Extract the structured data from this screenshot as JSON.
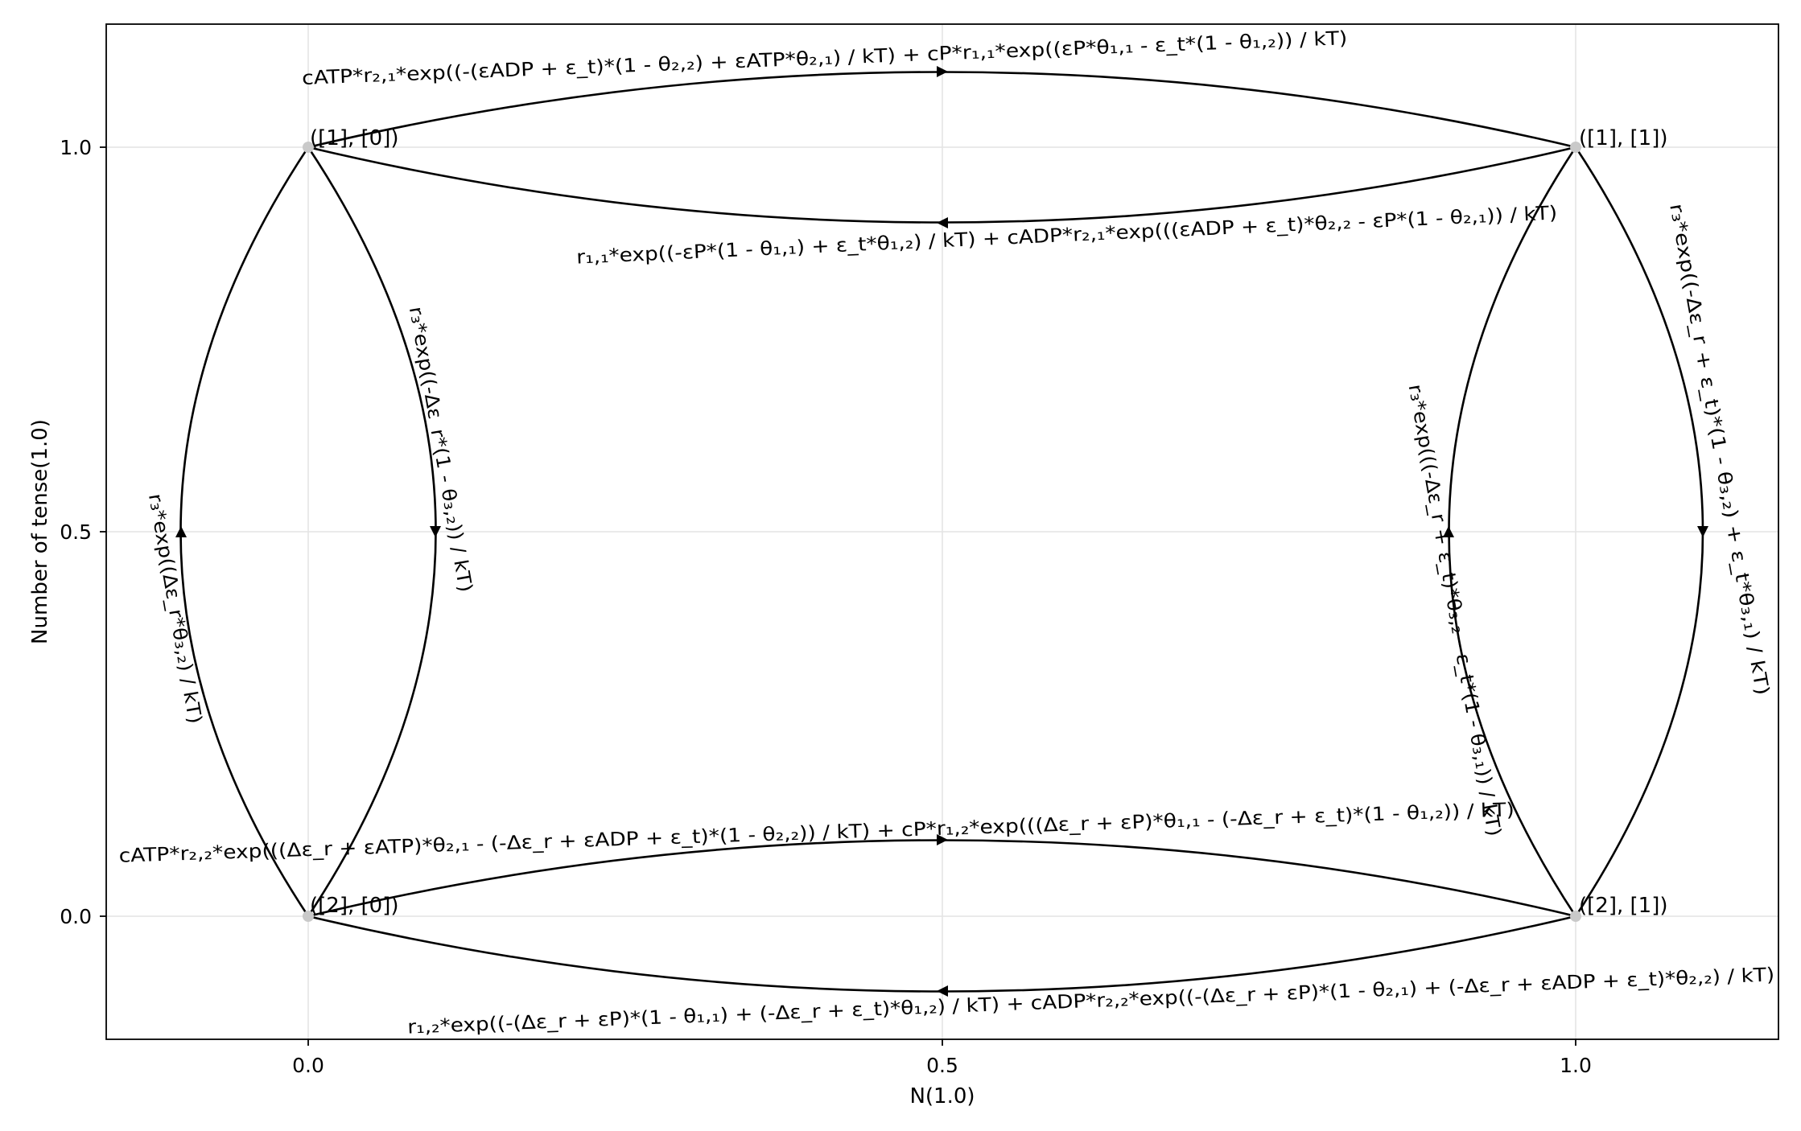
{
  "axes": {
    "xlabel": "N(1.0)",
    "ylabel": "Number of tense(1.0)",
    "xlim": [
      -0.16,
      1.16
    ],
    "ylim": [
      -0.16,
      1.16
    ],
    "xticks": [
      {
        "value": 0.0,
        "label": "0.0"
      },
      {
        "value": 0.5,
        "label": "0.5"
      },
      {
        "value": 1.0,
        "label": "1.0"
      }
    ],
    "yticks": [
      {
        "value": 0.0,
        "label": "0.0"
      },
      {
        "value": 0.5,
        "label": "0.5"
      },
      {
        "value": 1.0,
        "label": "1.0"
      }
    ],
    "grid": true
  },
  "nodes": [
    {
      "id": "n10",
      "label": "([1], [0])",
      "x": 0.0,
      "y": 1.0
    },
    {
      "id": "n11",
      "label": "([1], [1])",
      "x": 1.0,
      "y": 1.0
    },
    {
      "id": "n20",
      "label": "([2], [0])",
      "x": 0.0,
      "y": 0.0
    },
    {
      "id": "n21",
      "label": "([2], [1])",
      "x": 1.0,
      "y": 0.0
    }
  ],
  "edges": [
    {
      "id": "e-top-forward",
      "from": "n10",
      "to": "n11",
      "bend": 0.1,
      "label": "cATP*r₂,₁*exp((-(εADP + ε_t)*(1 - θ₂,₂) + εATP*θ₂,₁) / kT) + cP*r₁,₁*exp((εP*θ₁,₁ - ε_t*(1 - θ₁,₂)) / kT)"
    },
    {
      "id": "e-top-back",
      "from": "n11",
      "to": "n10",
      "bend": -0.1,
      "label": "r₁,₁*exp((-εP*(1 - θ₁,₁) + ε_t*θ₁,₂) / kT) + cADP*r₂,₁*exp(((εADP + ε_t)*θ₂,₂ - εP*(1 - θ₂,₁)) / kT)"
    },
    {
      "id": "e-left-down",
      "from": "n10",
      "to": "n20",
      "bend": 0.1,
      "label": "r₃*exp((-Δε_r*(1 - θ₃,₂)) / kT)"
    },
    {
      "id": "e-left-up",
      "from": "n20",
      "to": "n10",
      "bend": 0.1,
      "label": "r₃*exp((Δε_r*θ₃,₂) / kT)"
    },
    {
      "id": "e-right-down",
      "from": "n11",
      "to": "n21",
      "bend": 0.1,
      "label": "r₃*exp((-Δε_r + ε_t)*(1 - θ₃,₂) + ε_t*θ₃,₁) / kT)"
    },
    {
      "id": "e-right-up",
      "from": "n21",
      "to": "n11",
      "bend": 0.1,
      "label": "r₃*exp(((-Δε_r + ε_t)*θ₃,₂ - ε_t*(1 - θ₃,₁)) / kT)"
    },
    {
      "id": "e-bottom-forward",
      "from": "n20",
      "to": "n21",
      "bend": 0.1,
      "label": "cATP*r₂,₂*exp(((Δε_r + εATP)*θ₂,₁ - (-Δε_r + εADP + ε_t)*(1 - θ₂,₂)) / kT) + cP*r₁,₂*exp(((Δε_r + εP)*θ₁,₁ - (-Δε_r + ε_t)*(1 - θ₁,₂)) / kT)"
    },
    {
      "id": "e-bottom-back",
      "from": "n21",
      "to": "n20",
      "bend": -0.1,
      "label": "r₁,₂*exp((-(Δε_r + εP)*(1 - θ₁,₁) + (-Δε_r + ε_t)*θ₁,₂) / kT) + cADP*r₂,₂*exp((-(Δε_r + εP)*(1 - θ₂,₁) + (-Δε_r + εADP + ε_t)*θ₂,₂) / kT)"
    }
  ]
}
